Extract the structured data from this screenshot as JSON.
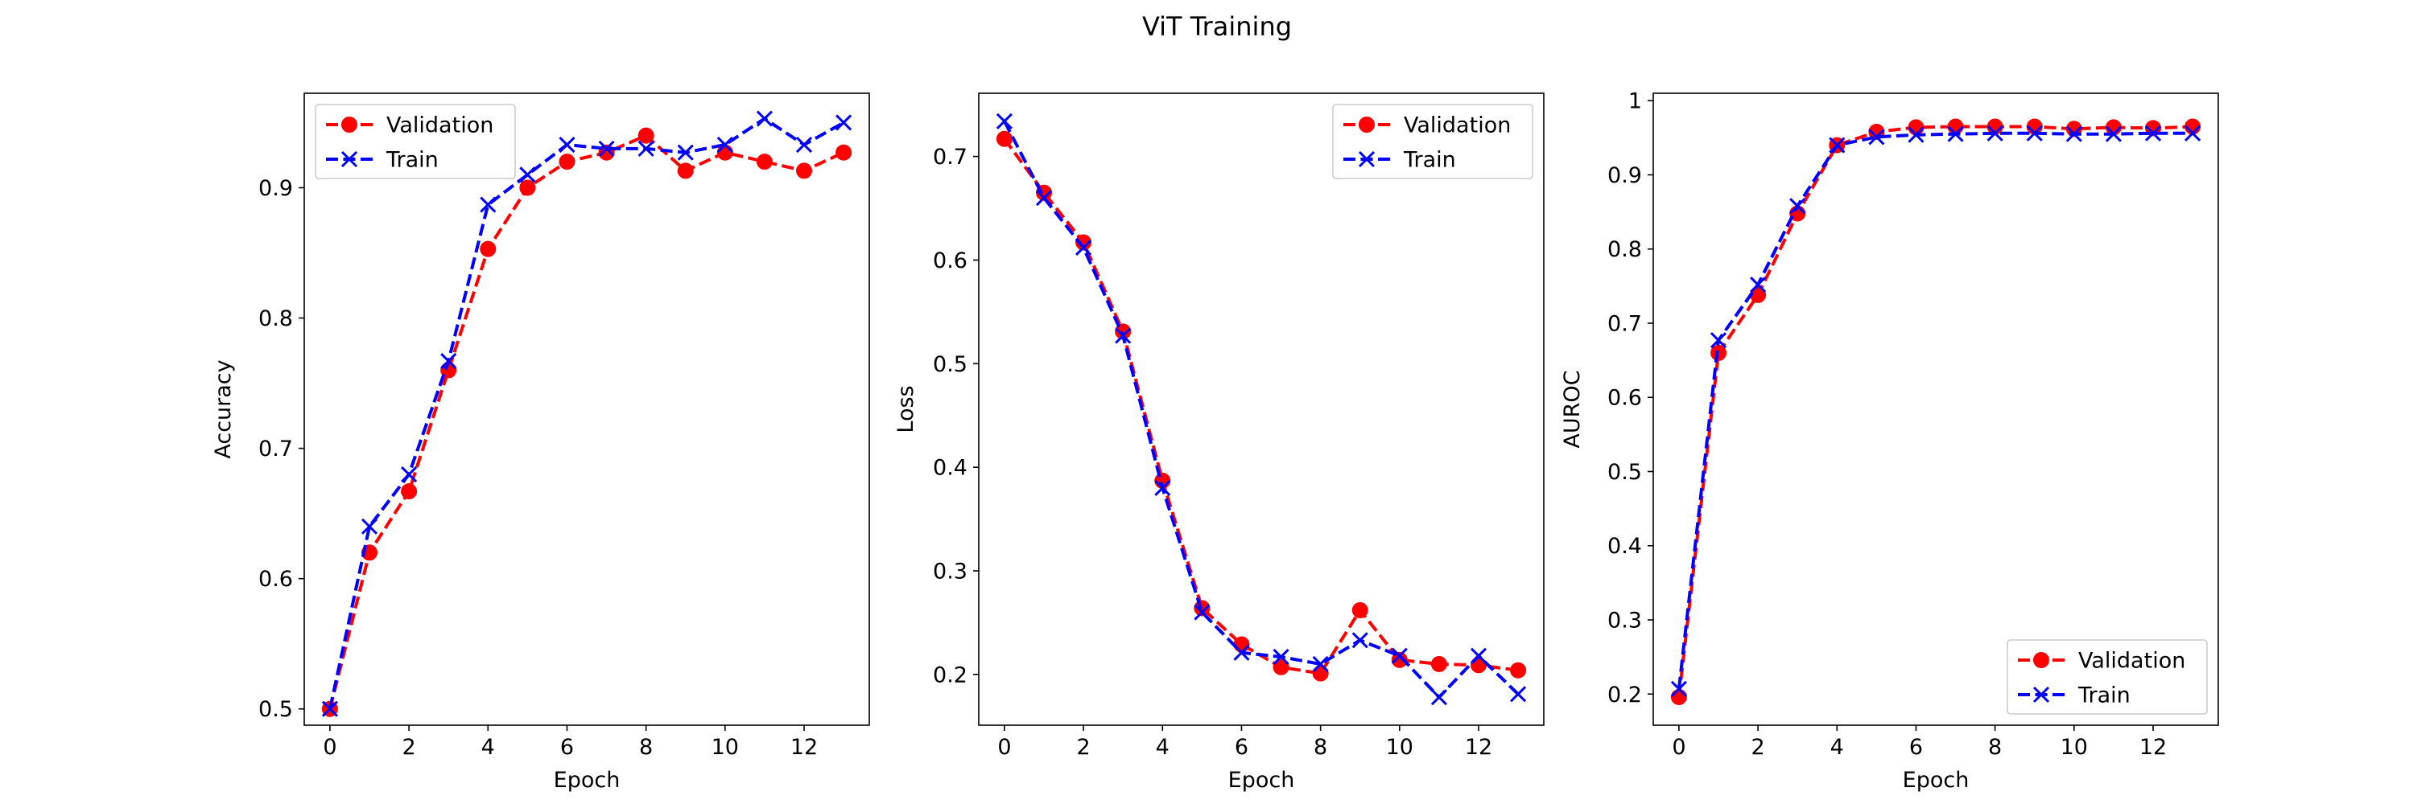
{
  "figure": {
    "title": "ViT Training"
  },
  "chart_data": [
    {
      "type": "line",
      "title": "",
      "xlabel": "Epoch",
      "ylabel": "Accuracy",
      "xlim": [
        -0.65,
        13.65
      ],
      "ylim": [
        0.4875,
        0.9725
      ],
      "xticks": [
        0,
        2,
        4,
        6,
        8,
        10,
        12
      ],
      "yticks": [
        0.5,
        0.6,
        0.7,
        0.8,
        0.9
      ],
      "legend": "upper-left",
      "grid": false,
      "x": [
        0,
        1,
        2,
        3,
        4,
        5,
        6,
        7,
        8,
        9,
        10,
        11,
        12,
        13
      ],
      "series": [
        {
          "name": "Validation",
          "color": "#ff0000",
          "marker": "circle",
          "values": [
            0.5,
            0.62,
            0.667,
            0.76,
            0.853,
            0.9,
            0.92,
            0.927,
            0.94,
            0.913,
            0.927,
            0.92,
            0.913,
            0.927
          ]
        },
        {
          "name": "Train",
          "color": "#0000ff",
          "marker": "x",
          "values": [
            0.5,
            0.64,
            0.68,
            0.767,
            0.887,
            0.91,
            0.933,
            0.93,
            0.93,
            0.927,
            0.933,
            0.953,
            0.933,
            0.95
          ]
        }
      ]
    },
    {
      "type": "line",
      "title": "",
      "xlabel": "Epoch",
      "ylabel": "Loss",
      "xlim": [
        -0.65,
        13.65
      ],
      "ylim": [
        0.151,
        0.761
      ],
      "xticks": [
        0,
        2,
        4,
        6,
        8,
        10,
        12
      ],
      "yticks": [
        0.2,
        0.3,
        0.4,
        0.5,
        0.6,
        0.7
      ],
      "legend": "upper-right",
      "grid": false,
      "x": [
        0,
        1,
        2,
        3,
        4,
        5,
        6,
        7,
        8,
        9,
        10,
        11,
        12,
        13
      ],
      "series": [
        {
          "name": "Validation",
          "color": "#ff0000",
          "marker": "circle",
          "values": [
            0.717,
            0.665,
            0.617,
            0.531,
            0.387,
            0.264,
            0.229,
            0.207,
            0.201,
            0.262,
            0.214,
            0.21,
            0.209,
            0.204
          ]
        },
        {
          "name": "Train",
          "color": "#0000ff",
          "marker": "x",
          "values": [
            0.734,
            0.66,
            0.612,
            0.527,
            0.38,
            0.26,
            0.221,
            0.217,
            0.21,
            0.233,
            0.218,
            0.178,
            0.218,
            0.181
          ]
        }
      ]
    },
    {
      "type": "line",
      "title": "",
      "xlabel": "Epoch",
      "ylabel": "AUROC",
      "xlim": [
        -0.65,
        13.65
      ],
      "ylim": [
        0.158,
        1.01
      ],
      "xticks": [
        0,
        2,
        4,
        6,
        8,
        10,
        12
      ],
      "yticks": [
        0.2,
        0.3,
        0.4,
        0.5,
        0.6,
        0.7,
        0.8,
        0.9,
        1.0
      ],
      "legend": "lower-right",
      "grid": false,
      "x": [
        0,
        1,
        2,
        3,
        4,
        5,
        6,
        7,
        8,
        9,
        10,
        11,
        12,
        13
      ],
      "series": [
        {
          "name": "Validation",
          "color": "#ff0000",
          "marker": "circle",
          "values": [
            0.196,
            0.66,
            0.738,
            0.848,
            0.94,
            0.958,
            0.964,
            0.965,
            0.965,
            0.965,
            0.962,
            0.964,
            0.963,
            0.965
          ]
        },
        {
          "name": "Train",
          "color": "#0000ff",
          "marker": "x",
          "values": [
            0.207,
            0.677,
            0.752,
            0.858,
            0.94,
            0.951,
            0.954,
            0.955,
            0.956,
            0.956,
            0.955,
            0.955,
            0.956,
            0.956
          ]
        }
      ]
    }
  ]
}
